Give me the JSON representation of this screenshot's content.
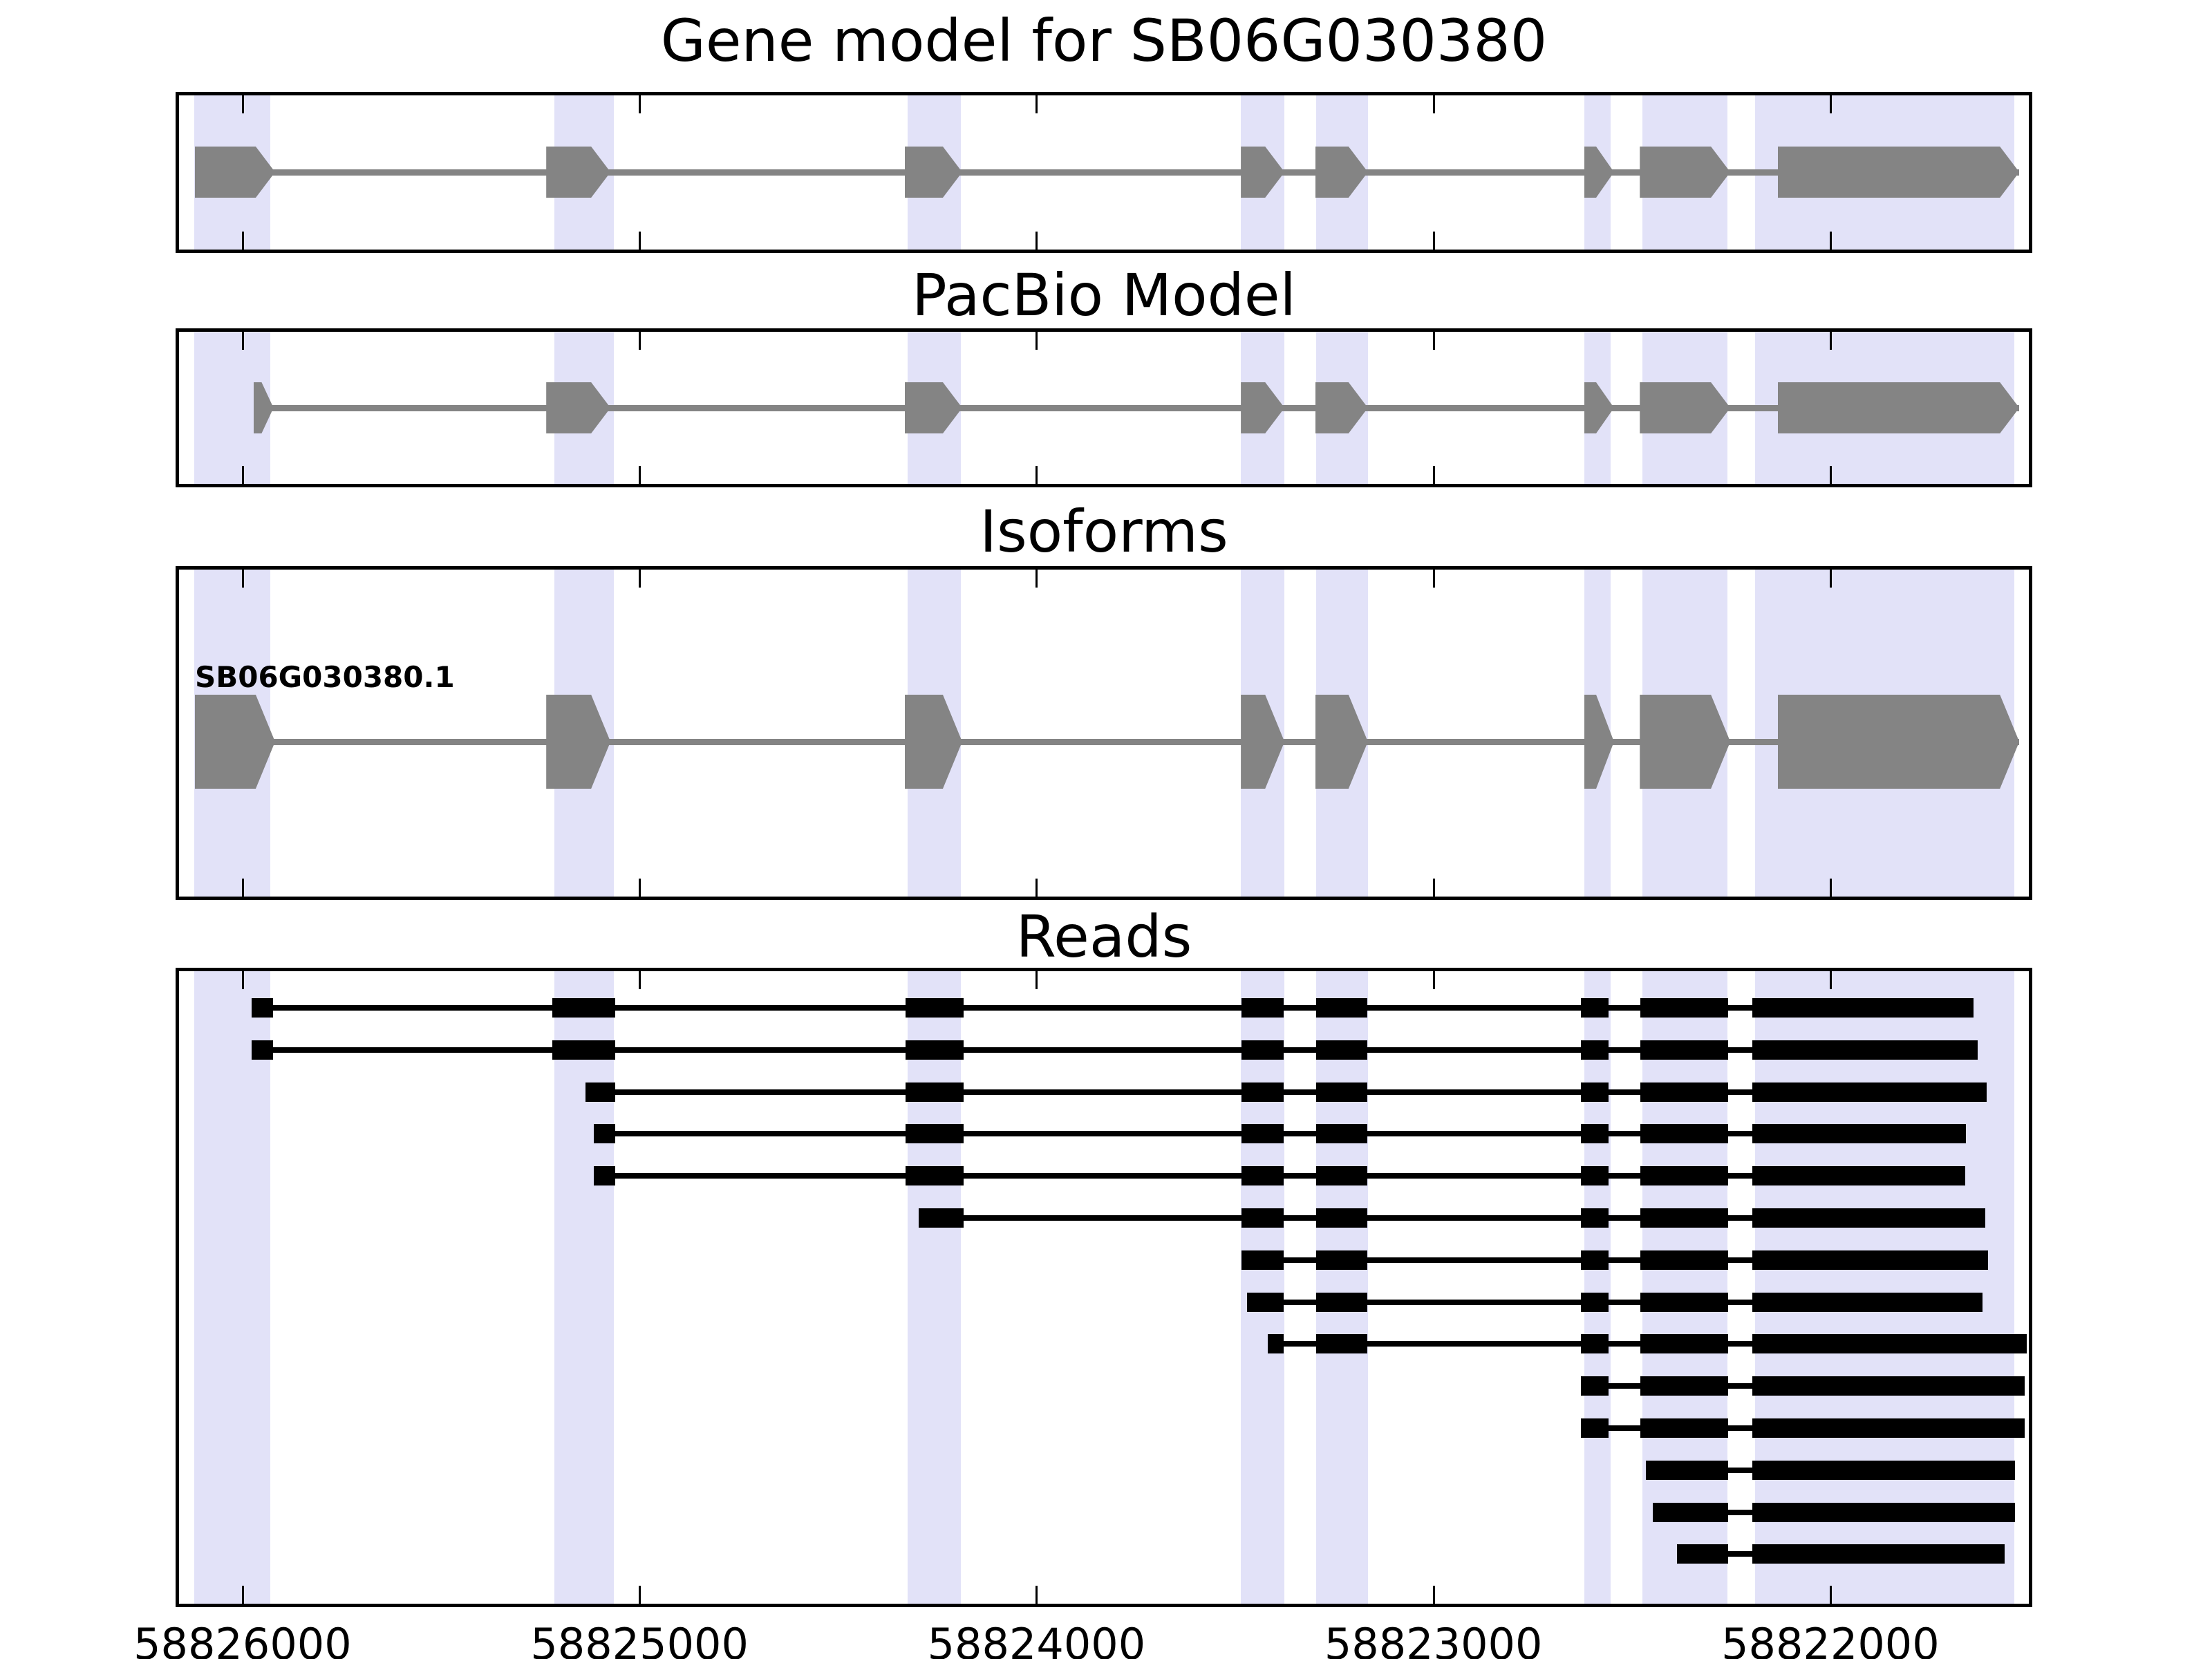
{
  "chart_data": {
    "type": "genome-track",
    "gene_id": "SB06G030380",
    "titles": {
      "gene_model": "Gene model for SB06G030380",
      "pacbio": "PacBio Model",
      "isoforms": "Isoforms",
      "reads": "Reads"
    },
    "isoform_label": "SB06G030380.1",
    "axis": {
      "left_bp": 58826160,
      "right_bp": 58821500,
      "reversed": true,
      "ticks": [
        58826000,
        58825000,
        58824000,
        58823000,
        58822000
      ],
      "tick_labels": [
        "58826000",
        "58825000",
        "58824000",
        "58823000",
        "58822000"
      ]
    },
    "highlight_bands": [
      [
        58826122,
        58825930
      ],
      [
        58825215,
        58825065
      ],
      [
        58824325,
        58824190
      ],
      [
        58823485,
        58823375
      ],
      [
        58823295,
        58823165
      ],
      [
        58822620,
        58822553
      ],
      [
        58822474,
        58822259
      ],
      [
        58822190,
        58821536
      ]
    ],
    "gene_model_exons": [
      [
        58826120,
        58825918
      ],
      [
        58825235,
        58825073
      ],
      [
        58824332,
        58824187
      ],
      [
        58823485,
        58823375
      ],
      [
        58823298,
        58823165
      ],
      [
        58822620,
        58822545
      ],
      [
        58822480,
        58822252
      ],
      [
        58822133,
        58821524
      ]
    ],
    "pacbio_exons": [
      [
        58825972,
        58825922
      ],
      [
        58825235,
        58825073
      ],
      [
        58824332,
        58824187
      ],
      [
        58823485,
        58823375
      ],
      [
        58823298,
        58823165
      ],
      [
        58822620,
        58822545
      ],
      [
        58822480,
        58822252
      ],
      [
        58822133,
        58821524
      ]
    ],
    "isoform_exons": [
      [
        58826120,
        58825918
      ],
      [
        58825235,
        58825073
      ],
      [
        58824332,
        58824187
      ],
      [
        58823485,
        58823375
      ],
      [
        58823298,
        58823165
      ],
      [
        58822620,
        58822545
      ],
      [
        58822480,
        58822252
      ],
      [
        58822133,
        58821524
      ]
    ],
    "read_rows": [
      [
        [
          58825977,
          58825923
        ],
        [
          58825219,
          58825061
        ],
        [
          58824330,
          58824184
        ],
        [
          58823483,
          58823377
        ],
        [
          58823296,
          58823167
        ],
        [
          58822628,
          58822558
        ],
        [
          58822479,
          58822258
        ],
        [
          58822196,
          58821640
        ]
      ],
      [
        [
          58825977,
          58825923
        ],
        [
          58825219,
          58825061
        ],
        [
          58824330,
          58824184
        ],
        [
          58823483,
          58823377
        ],
        [
          58823296,
          58823167
        ],
        [
          58822628,
          58822558
        ],
        [
          58822479,
          58822258
        ],
        [
          58822196,
          58821628
        ]
      ],
      [
        [
          58825136,
          58825061
        ],
        [
          58824330,
          58824184
        ],
        [
          58823483,
          58823377
        ],
        [
          58823296,
          58823167
        ],
        [
          58822628,
          58822558
        ],
        [
          58822479,
          58822258
        ],
        [
          58822196,
          58821607
        ]
      ],
      [
        [
          58825116,
          58825061
        ],
        [
          58824330,
          58824184
        ],
        [
          58823483,
          58823377
        ],
        [
          58823296,
          58823167
        ],
        [
          58822628,
          58822558
        ],
        [
          58822479,
          58822258
        ],
        [
          58822196,
          58821658
        ]
      ],
      [
        [
          58825116,
          58825061
        ],
        [
          58824330,
          58824184
        ],
        [
          58823483,
          58823377
        ],
        [
          58823296,
          58823167
        ],
        [
          58822628,
          58822558
        ],
        [
          58822479,
          58822258
        ],
        [
          58822196,
          58821661
        ]
      ],
      [
        [
          58824297,
          58824184
        ],
        [
          58823483,
          58823377
        ],
        [
          58823296,
          58823167
        ],
        [
          58822628,
          58822558
        ],
        [
          58822479,
          58822258
        ],
        [
          58822196,
          58821610
        ]
      ],
      [
        [
          58823483,
          58823377
        ],
        [
          58823296,
          58823167
        ],
        [
          58822628,
          58822558
        ],
        [
          58822479,
          58822258
        ],
        [
          58822196,
          58821603
        ]
      ],
      [
        [
          58823470,
          58823377
        ],
        [
          58823296,
          58823167
        ],
        [
          58822628,
          58822558
        ],
        [
          58822479,
          58822258
        ],
        [
          58822196,
          58821617
        ]
      ],
      [
        [
          58823417,
          58823377
        ],
        [
          58823296,
          58823167
        ],
        [
          58822628,
          58822558
        ],
        [
          58822479,
          58822258
        ],
        [
          58822196,
          58821505
        ]
      ],
      [
        [
          58822628,
          58822558
        ],
        [
          58822479,
          58822258
        ],
        [
          58822196,
          58821510
        ]
      ],
      [
        [
          58822628,
          58822558
        ],
        [
          58822479,
          58822258
        ],
        [
          58822196,
          58821510
        ]
      ],
      [
        [
          58822464,
          58822258
        ],
        [
          58822196,
          58821535
        ]
      ],
      [
        [
          58822447,
          58822258
        ],
        [
          58822196,
          58821535
        ]
      ],
      [
        [
          58822386,
          58822258
        ],
        [
          58822196,
          58821561
        ]
      ]
    ],
    "colors": {
      "band": "#e2e2f8",
      "exon_gray": "#848484",
      "read_black": "#000000",
      "background": "#ffffff",
      "border": "#000000"
    }
  }
}
